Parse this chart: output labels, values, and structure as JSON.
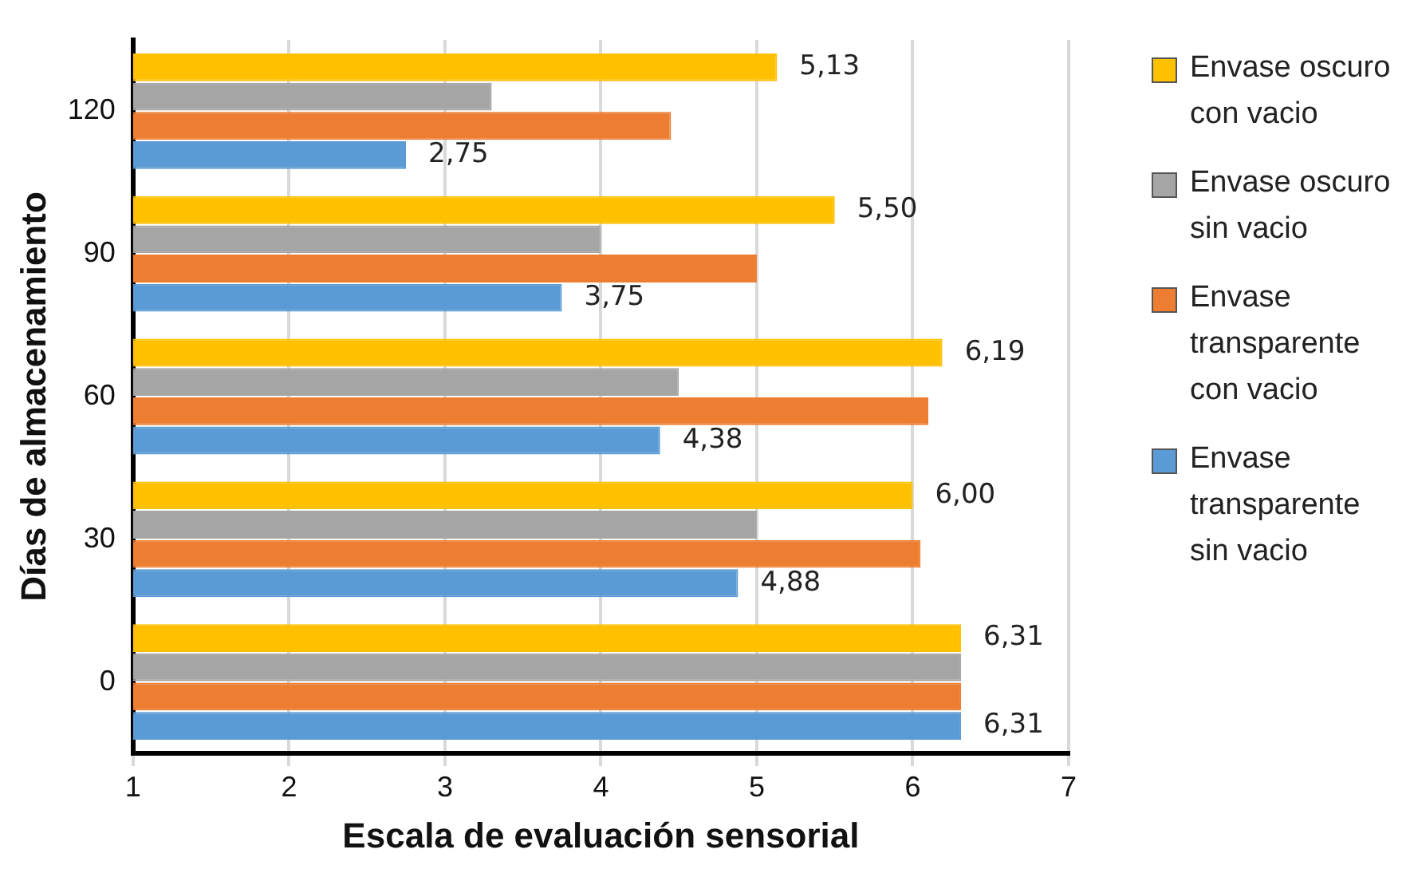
{
  "chart_data": {
    "type": "bar",
    "orientation": "horizontal",
    "xlabel": "Escala de evaluación sensorial",
    "ylabel": "Días de almacenamiento",
    "categories": [
      "120",
      "90",
      "60",
      "30",
      "0"
    ],
    "series": [
      {
        "name": "Envase oscuro con vacio",
        "color": "#ffc000",
        "values": [
          5.13,
          5.5,
          6.19,
          6.0,
          6.31
        ],
        "value_labels": [
          "5,13",
          "5,50",
          "6,19",
          "6,00",
          "6,31"
        ]
      },
      {
        "name": "Envase oscuro sin vacio",
        "color": "#a5a5a5",
        "values": [
          3.3,
          4.0,
          4.5,
          5.0,
          6.31
        ]
      },
      {
        "name": "Envase transparente con vacio",
        "color": "#ed7d31",
        "values": [
          4.45,
          5.0,
          6.1,
          6.05,
          6.31
        ]
      },
      {
        "name": "Envase transparente sin vacio",
        "color": "#5b9bd5",
        "values": [
          2.75,
          3.75,
          4.38,
          4.88,
          6.31
        ],
        "value_labels": [
          "2,75",
          "3,75",
          "4,38",
          "4,88",
          "6,31"
        ]
      }
    ],
    "xlim": [
      1,
      7
    ],
    "xticks": [
      1,
      2,
      3,
      4,
      5,
      6,
      7
    ],
    "grid": "x",
    "legend": "right"
  }
}
